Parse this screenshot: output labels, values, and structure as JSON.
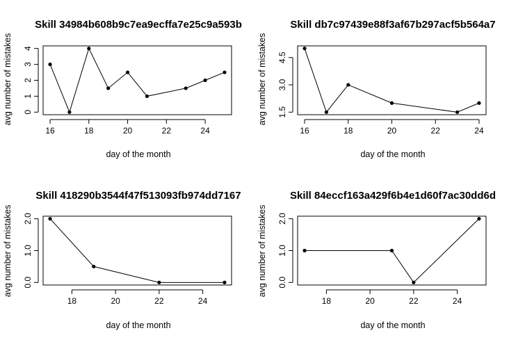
{
  "chart_data": [
    {
      "type": "line",
      "title": "Skill 34984b608b9c7ea9ecffa7e25c9a593b",
      "xlabel": "day of the month",
      "ylabel": "avg number of mistakes",
      "x": [
        16,
        17,
        18,
        19,
        20,
        21,
        23,
        24,
        25
      ],
      "y": [
        3,
        0,
        4,
        1.5,
        2.5,
        1,
        1.5,
        2,
        2.5
      ],
      "xlim": [
        15.64,
        25.36
      ],
      "ylim": [
        -0.16,
        4.16
      ],
      "xticks": [
        16,
        18,
        20,
        22,
        24
      ],
      "yticks": [
        0,
        1,
        2,
        3,
        4
      ],
      "ytick_labels": [
        "0",
        "1",
        "2",
        "3",
        "4"
      ],
      "grid": false,
      "legend": "none"
    },
    {
      "type": "line",
      "title": "Skill db7c97439e88f3af67b297acf5b564a7",
      "xlabel": "day of the month",
      "ylabel": "avg number of mistakes",
      "x": [
        16,
        17,
        18,
        20,
        23,
        24
      ],
      "y": [
        5,
        1.5,
        3,
        2,
        1.5,
        2
      ],
      "xlim": [
        15.68,
        24.32
      ],
      "ylim": [
        1.36,
        5.14
      ],
      "xticks": [
        16,
        18,
        20,
        22,
        24
      ],
      "yticks": [
        1.5,
        3.0,
        4.5
      ],
      "ytick_labels": [
        "1.5",
        "3.0",
        "4.5"
      ],
      "grid": false,
      "legend": "none"
    },
    {
      "type": "line",
      "title": "Skill 418290b3544f47f513093fb974dd7167",
      "xlabel": "day of the month",
      "ylabel": "avg number of mistakes",
      "x": [
        17,
        19,
        22,
        25
      ],
      "y": [
        2,
        0.5,
        0,
        0
      ],
      "xlim": [
        16.68,
        25.32
      ],
      "ylim": [
        -0.08,
        2.08
      ],
      "xticks": [
        18,
        20,
        22,
        24
      ],
      "yticks": [
        0,
        1,
        2
      ],
      "ytick_labels": [
        "0.0",
        "1.0",
        "2.0"
      ],
      "grid": false,
      "legend": "none"
    },
    {
      "type": "line",
      "title": "Skill 84eccf163a429f6b4e1d60f7ac30dd6d",
      "xlabel": "day of the month",
      "ylabel": "avg number of mistakes",
      "x": [
        17,
        21,
        22,
        25
      ],
      "y": [
        1,
        1,
        0,
        2
      ],
      "xlim": [
        16.68,
        25.32
      ],
      "ylim": [
        -0.08,
        2.08
      ],
      "xticks": [
        18,
        20,
        22,
        24
      ],
      "yticks": [
        0,
        1,
        2
      ],
      "ytick_labels": [
        "0.0",
        "1.0",
        "2.0"
      ],
      "grid": false,
      "legend": "none"
    }
  ]
}
